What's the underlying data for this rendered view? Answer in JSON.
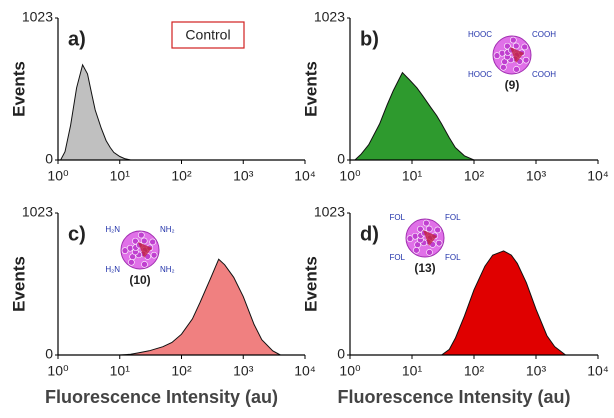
{
  "chart_data": [
    {
      "type": "area",
      "panel": "a)",
      "ylabel": "Events",
      "annotation": "Control",
      "xscale": "log",
      "color": "#c0c0c0",
      "x": [
        1.1,
        1.3,
        1.6,
        2,
        2.5,
        3,
        3.5,
        4,
        5,
        6,
        7,
        8,
        10,
        12,
        15
      ],
      "values": [
        0,
        60,
        250,
        520,
        685,
        620,
        480,
        360,
        230,
        140,
        90,
        55,
        25,
        10,
        0
      ],
      "xlim": [
        1,
        10000
      ],
      "xticks": [
        {
          "value": 1,
          "label": "10⁰"
        },
        {
          "value": 10,
          "label": "10¹"
        },
        {
          "value": 100,
          "label": "10²"
        },
        {
          "value": 1000,
          "label": "10³"
        },
        {
          "value": 10000,
          "label": "10⁴"
        }
      ],
      "ylim": [
        0,
        1023
      ],
      "yticks": [
        0,
        1023
      ]
    },
    {
      "type": "area",
      "panel": "b)",
      "ylabel": "Events",
      "compound_label": "(9)",
      "icon_labels": [
        "HOOC",
        "COOH",
        "HOOC",
        "COOH"
      ],
      "xscale": "log",
      "color": "#2e9a2e",
      "x": [
        1.2,
        1.5,
        2,
        3,
        4,
        5,
        7,
        9,
        12,
        15,
        20,
        25,
        30,
        40,
        50,
        70,
        100
      ],
      "values": [
        0,
        40,
        110,
        260,
        400,
        500,
        630,
        580,
        520,
        460,
        380,
        320,
        260,
        160,
        90,
        30,
        0
      ],
      "xlim": [
        1,
        10000
      ],
      "xticks": [
        {
          "value": 1,
          "label": "10⁰"
        },
        {
          "value": 10,
          "label": "10¹"
        },
        {
          "value": 100,
          "label": "10²"
        },
        {
          "value": 1000,
          "label": "10³"
        },
        {
          "value": 10000,
          "label": "10⁴"
        }
      ],
      "ylim": [
        0,
        1023
      ],
      "yticks": [
        0,
        1023
      ]
    },
    {
      "type": "area",
      "panel": "c)",
      "ylabel": "Events",
      "xlabel": "Fluorescence Intensity (au)",
      "compound_label": "(10)",
      "icon_labels": [
        "H₂N",
        "NH₂",
        "H₂N",
        "NH₂"
      ],
      "xscale": "log",
      "color": "#f08080",
      "x": [
        10,
        15,
        20,
        30,
        50,
        70,
        100,
        150,
        200,
        300,
        400,
        500,
        700,
        1000,
        1500,
        2000,
        3000,
        4000
      ],
      "values": [
        0,
        5,
        15,
        30,
        60,
        90,
        150,
        260,
        380,
        560,
        690,
        650,
        560,
        420,
        220,
        110,
        30,
        0
      ],
      "xlim": [
        1,
        10000
      ],
      "xticks": [
        {
          "value": 1,
          "label": "10⁰"
        },
        {
          "value": 10,
          "label": "10¹"
        },
        {
          "value": 100,
          "label": "10²"
        },
        {
          "value": 1000,
          "label": "10³"
        },
        {
          "value": 10000,
          "label": "10⁴"
        }
      ],
      "ylim": [
        0,
        1023
      ],
      "yticks": [
        0,
        1023
      ]
    },
    {
      "type": "area",
      "panel": "d)",
      "ylabel": "Events",
      "xlabel": "Fluorescence Intensity (au)",
      "compound_label": "(13)",
      "icon_labels": [
        "FOL",
        "FOL",
        "FOL",
        "FOL"
      ],
      "xscale": "log",
      "color": "#e00000",
      "x": [
        30,
        40,
        50,
        70,
        100,
        150,
        200,
        300,
        400,
        500,
        700,
        1000,
        1500,
        2000,
        3000
      ],
      "values": [
        0,
        40,
        120,
        280,
        470,
        640,
        720,
        750,
        720,
        660,
        520,
        330,
        140,
        60,
        0
      ],
      "xlim": [
        1,
        10000
      ],
      "xticks": [
        {
          "value": 1,
          "label": "10⁰"
        },
        {
          "value": 10,
          "label": "10¹"
        },
        {
          "value": 100,
          "label": "10²"
        },
        {
          "value": 1000,
          "label": "10³"
        },
        {
          "value": 10000,
          "label": "10⁴"
        }
      ],
      "ylim": [
        0,
        1023
      ],
      "yticks": [
        0,
        1023
      ]
    }
  ]
}
